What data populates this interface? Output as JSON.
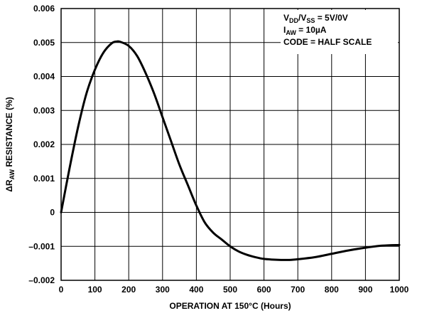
{
  "chart_data": {
    "type": "line",
    "title": "",
    "xlabel": "OPERATION AT 150°C (Hours)",
    "ylabel": {
      "prefix": "ΔR",
      "sub": "AW",
      "suffix": " RESISTANCE (%)"
    },
    "xlim": [
      0,
      1000
    ],
    "ylim": [
      -0.002,
      0.006
    ],
    "grid": true,
    "x_ticks": [
      0,
      100,
      200,
      300,
      400,
      500,
      600,
      700,
      800,
      900,
      1000
    ],
    "x_tick_labels": [
      "0",
      "100",
      "200",
      "300",
      "400",
      "500",
      "600",
      "700",
      "800",
      "900",
      "1000"
    ],
    "y_ticks": [
      -0.002,
      -0.001,
      0,
      0.001,
      0.002,
      0.003,
      0.004,
      0.005,
      0.006
    ],
    "y_tick_labels": [
      "–0.002",
      "–0.001",
      "0",
      "0.001",
      "0.002",
      "0.003",
      "0.004",
      "0.005",
      "0.006"
    ],
    "annotations": [
      {
        "parts": [
          {
            "t": "V"
          },
          {
            "t": "DD",
            "sub": true
          },
          {
            "t": "/V"
          },
          {
            "t": "SS",
            "sub": true
          },
          {
            "t": " = 5V/0V"
          }
        ]
      },
      {
        "parts": [
          {
            "t": "I"
          },
          {
            "t": "AW",
            "sub": true
          },
          {
            "t": " = 10µA"
          }
        ]
      },
      {
        "parts": [
          {
            "t": "CODE = HALF SCALE"
          }
        ]
      }
    ],
    "series": [
      {
        "x": [
          0,
          25,
          50,
          75,
          100,
          125,
          150,
          165,
          175,
          200,
          225,
          250,
          275,
          300,
          325,
          350,
          375,
          400,
          425,
          450,
          475,
          500,
          525,
          550,
          575,
          600,
          625,
          650,
          675,
          700,
          750,
          800,
          850,
          900,
          950,
          1000
        ],
        "y": [
          0.0,
          0.0013,
          0.0025,
          0.0035,
          0.0042,
          0.0047,
          0.00498,
          0.00503,
          0.00502,
          0.0049,
          0.0046,
          0.0041,
          0.0035,
          0.0028,
          0.0021,
          0.0014,
          0.0008,
          0.0002,
          -0.0003,
          -0.0006,
          -0.0008,
          -0.001,
          -0.00115,
          -0.00125,
          -0.00132,
          -0.00137,
          -0.00139,
          -0.0014,
          -0.0014,
          -0.00138,
          -0.00132,
          -0.00122,
          -0.00112,
          -0.00104,
          -0.00098,
          -0.00096
        ]
      }
    ],
    "line_color": "#000000"
  }
}
